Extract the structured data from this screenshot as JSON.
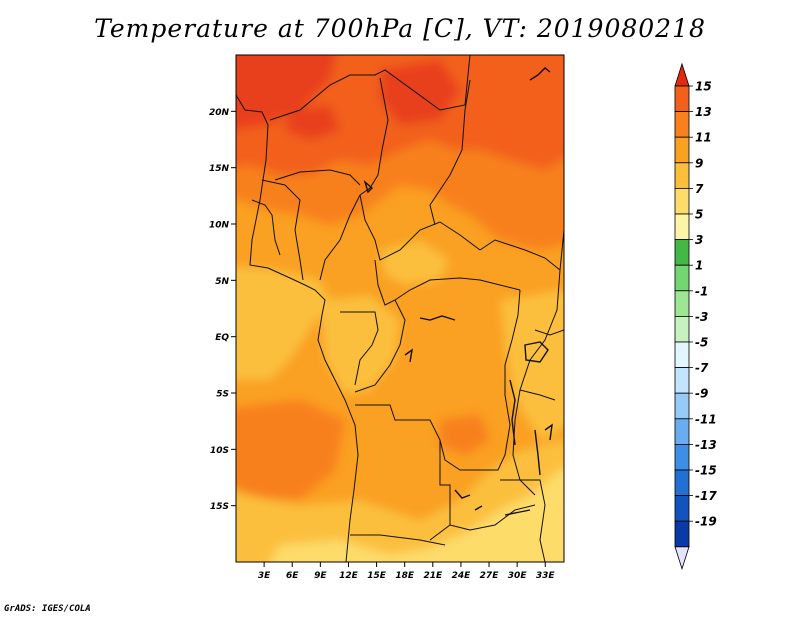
{
  "title": "Temperature at 700hPa [C], VT: 2019080218",
  "credit": "GrADS: IGES/COLA",
  "map": {
    "lat_range": [
      -20,
      25
    ],
    "lon_range": [
      0,
      35
    ],
    "lat_ticks": [
      {
        "lat": 20,
        "label": "20N"
      },
      {
        "lat": 15,
        "label": "15N"
      },
      {
        "lat": 10,
        "label": "10N"
      },
      {
        "lat": 5,
        "label": "5N"
      },
      {
        "lat": 0,
        "label": "EQ"
      },
      {
        "lat": -5,
        "label": "5S"
      },
      {
        "lat": -10,
        "label": "10S"
      },
      {
        "lat": -15,
        "label": "15S"
      }
    ],
    "lon_ticks": [
      {
        "lon": 3,
        "label": "3E"
      },
      {
        "lon": 6,
        "label": "6E"
      },
      {
        "lon": 9,
        "label": "9E"
      },
      {
        "lon": 12,
        "label": "12E"
      },
      {
        "lon": 15,
        "label": "15E"
      },
      {
        "lon": 18,
        "label": "18E"
      },
      {
        "lon": 21,
        "label": "21E"
      },
      {
        "lon": 24,
        "label": "24E"
      },
      {
        "lon": 27,
        "label": "27E"
      },
      {
        "lon": 30,
        "label": "30E"
      },
      {
        "lon": 33,
        "label": "33E"
      }
    ]
  },
  "colorbar": {
    "labels": [
      "15",
      "13",
      "11",
      "9",
      "7",
      "5",
      "3",
      "1",
      "-1",
      "-3",
      "-5",
      "-7",
      "-9",
      "-11",
      "-13",
      "-15",
      "-17",
      "-19"
    ],
    "colors": [
      "#e8401a",
      "#f2601a",
      "#f8801e",
      "#faa022",
      "#fbbf3c",
      "#fddc6a",
      "#fdf4a8",
      "#42b847",
      "#74d670",
      "#9ee694",
      "#c6f2c0",
      "#e2f6ff",
      "#c2e4ff",
      "#96cbf8",
      "#68adf0",
      "#3c8ee6",
      "#2170d4",
      "#1154c0",
      "#0a3aa8",
      "#0c1a78",
      "#e4e4ff"
    ],
    "top_color": "#e02a12"
  }
}
